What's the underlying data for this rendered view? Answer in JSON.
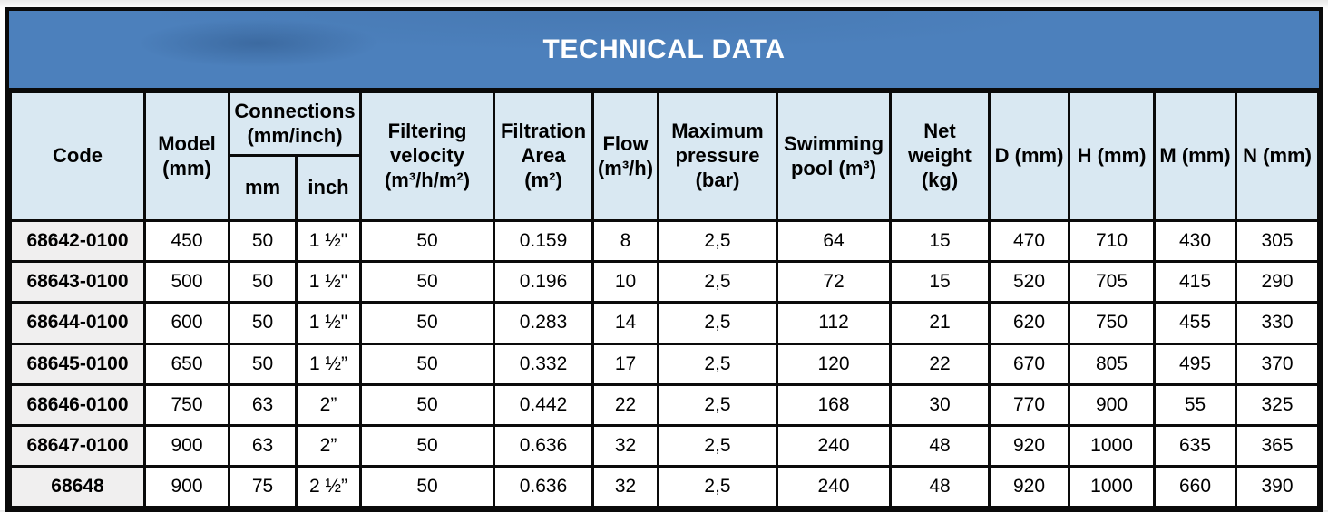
{
  "title": "TECHNICAL DATA",
  "colors": {
    "banner_bg": "#4c80bc",
    "banner_text": "#ffffff",
    "header_bg": "#d9e8f2",
    "code_col_bg": "#f0efef",
    "border": "#0a0a0a"
  },
  "header": {
    "code": "Code",
    "model": "Model\n(mm)",
    "connections": "Connections\n(mm/inch)",
    "connections_mm": "mm",
    "connections_inch": "inch",
    "filtering_velocity": "Filtering\nvelocity\n(m³/h/m²)",
    "filtration_area": "Filtration\nArea\n(m²)",
    "flow": "Flow\n(m³/h)",
    "max_pressure": "Maximum\npressure\n(bar)",
    "swimming_pool": "Swimming\npool (m³)",
    "net_weight": "Net\nweight\n(kg)",
    "d": "D (mm)",
    "h": "H (mm)",
    "m": "M (mm)",
    "n": "N (mm)"
  },
  "chart_data": {
    "type": "table",
    "title": "TECHNICAL DATA",
    "columns": [
      "Code",
      "Model (mm)",
      "Connections mm",
      "Connections inch",
      "Filtering velocity (m³/h/m²)",
      "Filtration Area (m²)",
      "Flow (m³/h)",
      "Maximum pressure (bar)",
      "Swimming pool (m³)",
      "Net weight (kg)",
      "D (mm)",
      "H (mm)",
      "M (mm)",
      "N (mm)"
    ]
  },
  "rows": [
    [
      "68642-0100",
      "450",
      "50",
      "1 ½\"",
      "50",
      "0.159",
      "8",
      "2,5",
      "64",
      "15",
      "470",
      "710",
      "430",
      "305"
    ],
    [
      "68643-0100",
      "500",
      "50",
      "1 ½\"",
      "50",
      "0.196",
      "10",
      "2,5",
      "72",
      "15",
      "520",
      "705",
      "415",
      "290"
    ],
    [
      "68644-0100",
      "600",
      "50",
      "1 ½\"",
      "50",
      "0.283",
      "14",
      "2,5",
      "112",
      "21",
      "620",
      "750",
      "455",
      "330"
    ],
    [
      "68645-0100",
      "650",
      "50",
      "1 ½”",
      "50",
      "0.332",
      "17",
      "2,5",
      "120",
      "22",
      "670",
      "805",
      "495",
      "370"
    ],
    [
      "68646-0100",
      "750",
      "63",
      "2”",
      "50",
      "0.442",
      "22",
      "2,5",
      "168",
      "30",
      "770",
      "900",
      "55",
      "325"
    ],
    [
      "68647-0100",
      "900",
      "63",
      "2”",
      "50",
      "0.636",
      "32",
      "2,5",
      "240",
      "48",
      "920",
      "1000",
      "635",
      "365"
    ],
    [
      "68648",
      "900",
      "75",
      "2 ½”",
      "50",
      "0.636",
      "32",
      "2,5",
      "240",
      "48",
      "920",
      "1000",
      "660",
      "390"
    ]
  ]
}
